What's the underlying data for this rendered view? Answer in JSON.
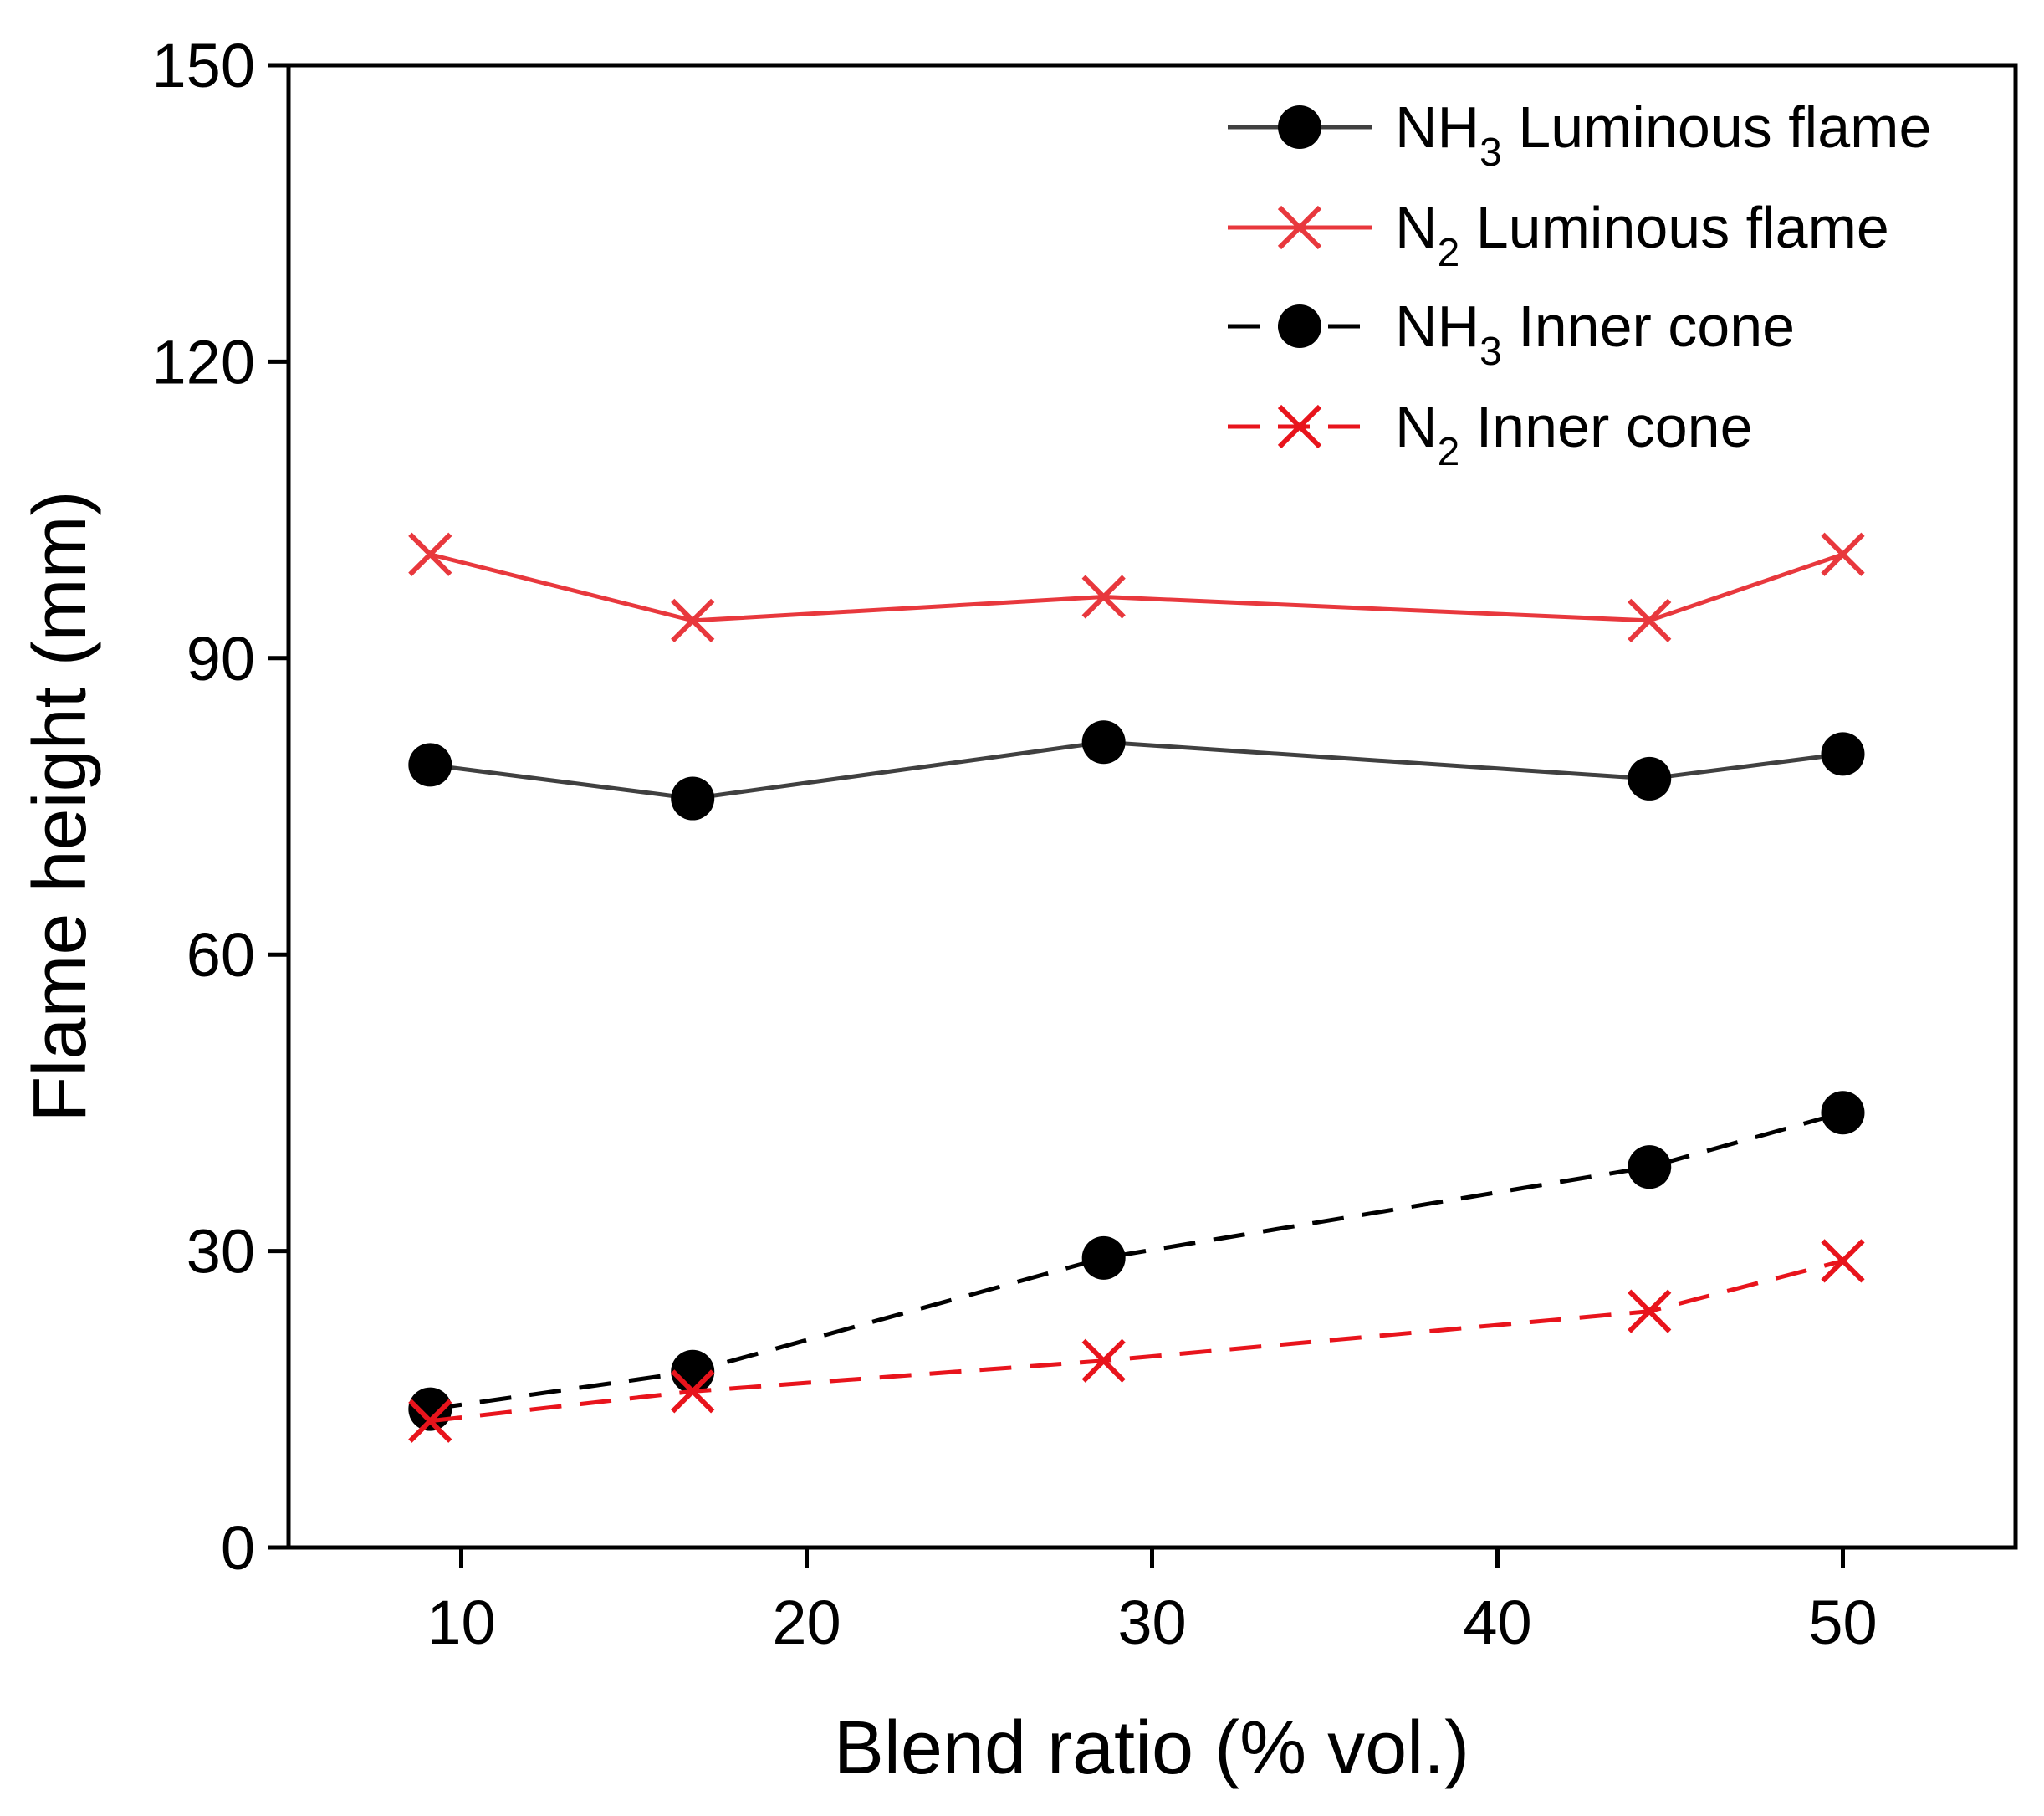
{
  "chart_data": {
    "type": "line",
    "title": "",
    "xlabel": "Blend ratio (% vol.)",
    "ylabel": "Flame height (mm)",
    "xlim": [
      5,
      55
    ],
    "ylim": [
      0,
      150
    ],
    "xticks": [
      10,
      20,
      30,
      40,
      50
    ],
    "yticks": [
      0,
      30,
      60,
      90,
      120,
      150
    ],
    "xtick_labels": [
      "10",
      "20",
      "30",
      "40",
      "50"
    ],
    "ytick_labels": [
      "0",
      "30",
      "60",
      "90",
      "120",
      "150"
    ],
    "grid": false,
    "legend_position": "top-right",
    "series": [
      {
        "name": "NH3 Luminous flame",
        "legend_main": "NH",
        "legend_sub": "3",
        "legend_rest": " Luminous flame",
        "color": "#404040",
        "marker": "circle",
        "line_style": "solid",
        "x": [
          9.1,
          16.7,
          28.6,
          44.4,
          50
        ],
        "y": [
          79.2,
          75.8,
          81.5,
          77.8,
          80.3
        ]
      },
      {
        "name": "N2 Luminous flame",
        "legend_main": "N",
        "legend_sub": "2",
        "legend_rest": " Luminous flame",
        "color": "#e8383d",
        "marker": "x",
        "line_style": "solid",
        "x": [
          9.1,
          16.7,
          28.6,
          44.4,
          50
        ],
        "y": [
          100.5,
          93.8,
          96.2,
          93.8,
          100.5
        ]
      },
      {
        "name": "NH3 Inner cone",
        "legend_main": "NH",
        "legend_sub": "3",
        "legend_rest": " Inner cone",
        "color": "#000000",
        "marker": "circle",
        "line_style": "dashed",
        "x": [
          9.1,
          16.7,
          28.6,
          44.4,
          50
        ],
        "y": [
          14.0,
          17.8,
          29.3,
          38.5,
          44.0
        ]
      },
      {
        "name": "N2 Inner cone",
        "legend_main": "N",
        "legend_sub": "2",
        "legend_rest": " Inner cone",
        "color": "#e8141c",
        "marker": "x",
        "line_style": "dashed",
        "x": [
          9.1,
          16.7,
          28.6,
          44.4,
          50
        ],
        "y": [
          12.8,
          15.8,
          18.9,
          23.9,
          29.0
        ]
      }
    ]
  }
}
